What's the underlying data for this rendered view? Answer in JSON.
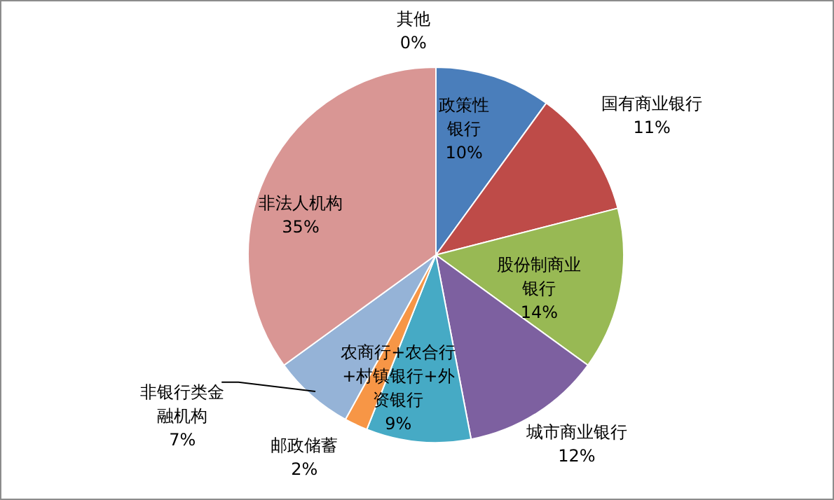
{
  "chart_data": {
    "type": "pie",
    "categories": [
      "其他",
      "政策性银行",
      "国有商业银行",
      "股份制商业银行",
      "城市商业银行",
      "农商行+农合行+村镇银行+外资银行",
      "邮政储蓄",
      "非银行类金融机构",
      "非法人机构"
    ],
    "values": [
      0,
      10,
      11,
      14,
      12,
      9,
      2,
      7,
      35
    ],
    "value_labels": [
      "0%",
      "10%",
      "11%",
      "14%",
      "12%",
      "9%",
      "2%",
      "7%",
      "35%"
    ],
    "colors": [
      "#2c4d75",
      "#4a7ebb",
      "#be4b48",
      "#98b954",
      "#7d60a0",
      "#46aac5",
      "#f79646",
      "#95b3d7",
      "#d99694"
    ]
  }
}
